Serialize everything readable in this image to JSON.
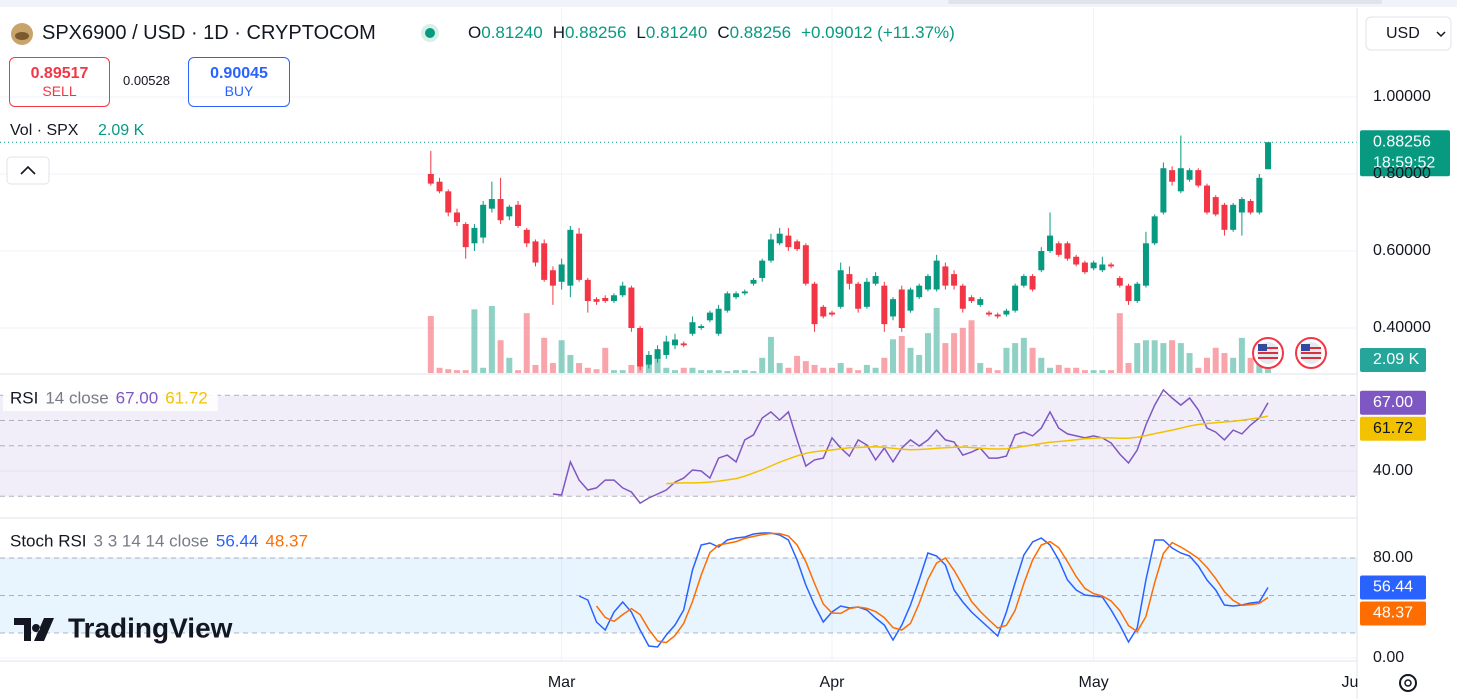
{
  "header": {
    "symbol": "SPX6900 / USD · 1D · CRYPTOCOM",
    "ohlc": [
      {
        "key": "O",
        "value": "0.81240"
      },
      {
        "key": "H",
        "value": "0.88256"
      },
      {
        "key": "L",
        "value": "0.81240"
      },
      {
        "key": "C",
        "value": "0.88256"
      }
    ],
    "change": "+0.09012 (+11.37%)",
    "sell": {
      "price": "0.89517",
      "label": "SELL"
    },
    "spread": "0.00528",
    "buy": {
      "price": "0.90045",
      "label": "BUY"
    },
    "currency": "USD",
    "brand": "TradingView"
  },
  "chart_data": {
    "type": "candlestick",
    "up_color": "#089981",
    "down_color": "#f23645",
    "grid": true,
    "xlim": [
      -49.4,
      106.2
    ],
    "xticks": [
      {
        "value": 15,
        "label": "Mar"
      },
      {
        "value": 46,
        "label": "Apr"
      },
      {
        "value": 76,
        "label": "May"
      },
      {
        "value": 107,
        "label": "Ju"
      }
    ],
    "ylim": [
      0.2831,
      1.226
    ],
    "yticks": [
      {
        "value": 1,
        "label": "1.00000"
      },
      {
        "value": 0.8,
        "label": "0.80000"
      },
      {
        "value": 0.6,
        "label": "0.60000"
      },
      {
        "value": 0.4,
        "label": "0.40000"
      }
    ],
    "last_price": {
      "label": "0.88256",
      "countdown": "18:59:52"
    },
    "ohlc": [
      [
        0.8,
        0.86,
        0.77,
        0.775
      ],
      [
        0.78,
        0.79,
        0.75,
        0.755
      ],
      [
        0.755,
        0.76,
        0.69,
        0.7
      ],
      [
        0.7,
        0.71,
        0.665,
        0.675
      ],
      [
        0.67,
        0.675,
        0.58,
        0.61
      ],
      [
        0.62,
        0.67,
        0.6,
        0.66
      ],
      [
        0.635,
        0.73,
        0.62,
        0.72
      ],
      [
        0.71,
        0.78,
        0.7,
        0.735
      ],
      [
        0.735,
        0.79,
        0.67,
        0.68
      ],
      [
        0.69,
        0.72,
        0.68,
        0.715
      ],
      [
        0.72,
        0.73,
        0.66,
        0.665
      ],
      [
        0.655,
        0.66,
        0.61,
        0.62
      ],
      [
        0.625,
        0.63,
        0.56,
        0.57
      ],
      [
        0.62,
        0.63,
        0.52,
        0.525
      ],
      [
        0.55,
        0.56,
        0.46,
        0.51
      ],
      [
        0.52,
        0.58,
        0.5,
        0.565
      ],
      [
        0.51,
        0.665,
        0.48,
        0.655
      ],
      [
        0.645,
        0.66,
        0.52,
        0.525
      ],
      [
        0.525,
        0.53,
        0.44,
        0.47
      ],
      [
        0.475,
        0.48,
        0.46,
        0.468
      ],
      [
        0.478,
        0.485,
        0.465,
        0.47
      ],
      [
        0.47,
        0.49,
        0.465,
        0.485
      ],
      [
        0.485,
        0.52,
        0.48,
        0.51
      ],
      [
        0.505,
        0.51,
        0.39,
        0.4
      ],
      [
        0.4,
        0.405,
        0.29,
        0.3
      ],
      [
        0.305,
        0.34,
        0.295,
        0.33
      ],
      [
        0.32,
        0.355,
        0.31,
        0.345
      ],
      [
        0.33,
        0.38,
        0.32,
        0.365
      ],
      [
        0.355,
        0.385,
        0.345,
        0.37
      ],
      [
        0.36,
        0.365,
        0.35,
        0.355
      ],
      [
        0.385,
        0.43,
        0.38,
        0.415
      ],
      [
        0.4,
        0.41,
        0.395,
        0.405
      ],
      [
        0.42,
        0.445,
        0.415,
        0.44
      ],
      [
        0.385,
        0.46,
        0.38,
        0.45
      ],
      [
        0.445,
        0.495,
        0.44,
        0.49
      ],
      [
        0.48,
        0.495,
        0.475,
        0.49
      ],
      [
        0.49,
        0.5,
        0.485,
        0.495
      ],
      [
        0.515,
        0.53,
        0.51,
        0.525
      ],
      [
        0.53,
        0.58,
        0.52,
        0.575
      ],
      [
        0.575,
        0.645,
        0.57,
        0.63
      ],
      [
        0.62,
        0.66,
        0.615,
        0.645
      ],
      [
        0.64,
        0.66,
        0.6,
        0.61
      ],
      [
        0.625,
        0.63,
        0.6,
        0.605
      ],
      [
        0.615,
        0.62,
        0.51,
        0.515
      ],
      [
        0.515,
        0.52,
        0.39,
        0.41
      ],
      [
        0.455,
        0.46,
        0.425,
        0.43
      ],
      [
        0.44,
        0.445,
        0.43,
        0.435
      ],
      [
        0.455,
        0.57,
        0.45,
        0.55
      ],
      [
        0.54,
        0.56,
        0.5,
        0.515
      ],
      [
        0.515,
        0.52,
        0.44,
        0.45
      ],
      [
        0.455,
        0.53,
        0.45,
        0.52
      ],
      [
        0.515,
        0.545,
        0.51,
        0.535
      ],
      [
        0.51,
        0.52,
        0.39,
        0.41
      ],
      [
        0.43,
        0.48,
        0.42,
        0.475
      ],
      [
        0.5,
        0.51,
        0.39,
        0.4
      ],
      [
        0.445,
        0.505,
        0.44,
        0.5
      ],
      [
        0.48,
        0.515,
        0.475,
        0.51
      ],
      [
        0.5,
        0.54,
        0.495,
        0.535
      ],
      [
        0.5,
        0.59,
        0.495,
        0.575
      ],
      [
        0.56,
        0.57,
        0.5,
        0.51
      ],
      [
        0.54,
        0.55,
        0.5,
        0.51
      ],
      [
        0.51,
        0.515,
        0.44,
        0.45
      ],
      [
        0.48,
        0.485,
        0.465,
        0.47
      ],
      [
        0.46,
        0.48,
        0.455,
        0.475
      ],
      [
        0.44,
        0.445,
        0.43,
        0.435
      ],
      [
        0.435,
        0.44,
        0.425,
        0.43
      ],
      [
        0.435,
        0.45,
        0.43,
        0.445
      ],
      [
        0.445,
        0.515,
        0.44,
        0.51
      ],
      [
        0.51,
        0.54,
        0.505,
        0.535
      ],
      [
        0.535,
        0.54,
        0.495,
        0.5
      ],
      [
        0.55,
        0.61,
        0.545,
        0.6
      ],
      [
        0.6,
        0.7,
        0.595,
        0.64
      ],
      [
        0.62,
        0.625,
        0.585,
        0.59
      ],
      [
        0.62,
        0.625,
        0.575,
        0.58
      ],
      [
        0.585,
        0.59,
        0.56,
        0.565
      ],
      [
        0.57,
        0.575,
        0.54,
        0.545
      ],
      [
        0.555,
        0.575,
        0.55,
        0.57
      ],
      [
        0.55,
        0.585,
        0.545,
        0.565
      ],
      [
        0.565,
        0.57,
        0.555,
        0.56
      ],
      [
        0.53,
        0.535,
        0.505,
        0.51
      ],
      [
        0.51,
        0.515,
        0.46,
        0.47
      ],
      [
        0.47,
        0.52,
        0.465,
        0.515
      ],
      [
        0.51,
        0.65,
        0.505,
        0.62
      ],
      [
        0.62,
        0.695,
        0.615,
        0.69
      ],
      [
        0.7,
        0.83,
        0.695,
        0.815
      ],
      [
        0.81,
        0.82,
        0.77,
        0.78
      ],
      [
        0.755,
        0.9,
        0.75,
        0.815
      ],
      [
        0.785,
        0.815,
        0.78,
        0.81
      ],
      [
        0.81,
        0.815,
        0.765,
        0.77
      ],
      [
        0.77,
        0.775,
        0.695,
        0.7
      ],
      [
        0.74,
        0.745,
        0.69,
        0.695
      ],
      [
        0.72,
        0.725,
        0.64,
        0.655
      ],
      [
        0.655,
        0.725,
        0.65,
        0.72
      ],
      [
        0.7,
        0.74,
        0.64,
        0.735
      ],
      [
        0.73,
        0.735,
        0.695,
        0.7
      ],
      [
        0.7,
        0.8,
        0.695,
        0.79
      ],
      [
        0.8124,
        0.88256,
        0.8124,
        0.88256
      ]
    ],
    "volume": {
      "title": "Vol · SPX",
      "value_label": "2.09 K",
      "ylim": [
        0,
        20
      ],
      "values": [
        12.0,
        1.1,
        0.8,
        0.6,
        0.6,
        13.4,
        1.1,
        14.1,
        6.9,
        3.2,
        0.6,
        12.6,
        1.7,
        7.4,
        2.1,
        6.9,
        3.8,
        2.1,
        1.1,
        0.8,
        5.3,
        0.6,
        0.6,
        1.7,
        8.4,
        3.8,
        4.2,
        1.1,
        0.6,
        1.1,
        1.1,
        0.6,
        0.6,
        0.6,
        0.4,
        0.6,
        0.6,
        0.4,
        3.2,
        7.6,
        2.1,
        1.1,
        3.6,
        2.5,
        1.7,
        1.1,
        1.1,
        2.1,
        1.1,
        0.6,
        1.7,
        1.1,
        3.2,
        7.1,
        7.8,
        5.3,
        3.8,
        8.4,
        13.7,
        6.3,
        8.4,
        9.5,
        11.1,
        2.1,
        1.1,
        0.6,
        5.3,
        6.3,
        7.4,
        5.3,
        3.2,
        1.1,
        1.7,
        1.1,
        1.1,
        0.6,
        0.6,
        0.6,
        0.6,
        12.6,
        2.1,
        6.3,
        6.9,
        6.9,
        6.3,
        6.9,
        6.3,
        4.2,
        1.1,
        3.2,
        5.3,
        4.2,
        3.2,
        7.4,
        3.2,
        6.3,
        2.09
      ]
    },
    "rsi": {
      "title": "RSI",
      "params": "14 close",
      "ylim": [
        21.8,
        78
      ],
      "yticks": [
        {
          "value": 40,
          "label": "40.00"
        }
      ],
      "bands": [
        70,
        60,
        50,
        30
      ],
      "band_color": "#7e57c2",
      "series": [
        {
          "color": "#7e57c2",
          "value_label": "67.00",
          "values": [
            null,
            null,
            null,
            null,
            null,
            null,
            null,
            null,
            null,
            null,
            null,
            null,
            null,
            null,
            30.9,
            30.5,
            43.6,
            36.4,
            32.5,
            33.3,
            36.4,
            36.4,
            33.3,
            31.7,
            27.3,
            29.3,
            30.9,
            32.5,
            35.6,
            37.2,
            40.4,
            40,
            37.2,
            45.1,
            46.3,
            43.6,
            52.3,
            54.3,
            61,
            63.4,
            60.2,
            63.4,
            52.3,
            42,
            44.4,
            45.1,
            53.1,
            49.1,
            45.9,
            52.3,
            50.3,
            44.4,
            49.1,
            43.6,
            49.1,
            52.3,
            49.9,
            52.3,
            56.2,
            52.3,
            51.5,
            46.3,
            47.5,
            49.1,
            45.1,
            45.1,
            45.9,
            54.3,
            55.4,
            53.9,
            57,
            63.4,
            57,
            54.7,
            53.9,
            53.1,
            53.9,
            53.1,
            51.1,
            46.7,
            43.2,
            48.3,
            58.2,
            66.1,
            72.1,
            68.9,
            66.1,
            68.9,
            64.2,
            57,
            55.4,
            52.3,
            56.2,
            54.7,
            58.2,
            61,
            67
          ]
        },
        {
          "color": "#f2c200",
          "value_label": "61.72",
          "values": [
            null,
            null,
            null,
            null,
            null,
            null,
            null,
            null,
            null,
            null,
            null,
            null,
            null,
            null,
            null,
            null,
            null,
            null,
            null,
            null,
            null,
            null,
            null,
            null,
            null,
            null,
            null,
            35.0,
            35.2,
            35.3,
            35.3,
            35.4,
            35.6,
            36.0,
            36.5,
            37.0,
            38.0,
            39.2,
            40.5,
            42.0,
            43.5,
            44.8,
            46.0,
            47.0,
            47.6,
            48.0,
            48.3,
            48.8,
            49.2,
            49.3,
            49.5,
            49.6,
            49.4,
            49.0,
            48.6,
            48.4,
            48.5,
            48.7,
            49.0,
            49.2,
            49.4,
            49.5,
            49.3,
            49.0,
            48.8,
            48.7,
            48.8,
            49.2,
            49.8,
            50.3,
            50.9,
            51.4,
            51.7,
            52.0,
            52.4,
            52.8,
            53.0,
            53.1,
            53.1,
            53.0,
            53.0,
            53.4,
            54.0,
            54.8,
            55.5,
            56.2,
            57.0,
            57.8,
            58.4,
            58.8,
            59.1,
            59.4,
            59.7,
            60.1,
            60.6,
            61.1,
            61.72
          ]
        }
      ]
    },
    "stoch_rsi": {
      "title": "Stoch RSI",
      "params": "3 3 14 14 close",
      "ylim": [
        -1.6,
        111.2
      ],
      "yticks": [
        {
          "value": 80,
          "label": "80.00"
        },
        {
          "value": 0,
          "label": "0.00"
        }
      ],
      "bands": [
        80,
        50,
        20
      ],
      "band_color": "#2196f3",
      "series": [
        {
          "color": "#2962ff",
          "value_label": "56.44",
          "values": [
            null,
            null,
            null,
            null,
            null,
            null,
            null,
            null,
            null,
            null,
            null,
            null,
            null,
            null,
            null,
            null,
            null,
            49.6,
            46.4,
            28.8,
            22.4,
            36.8,
            44.8,
            36.8,
            22.4,
            9.6,
            8.8,
            18.4,
            26.4,
            38.4,
            70.4,
            90.4,
            92,
            88.8,
            94.4,
            96,
            96.8,
            99.2,
            100,
            100,
            98.4,
            94.4,
            78.4,
            58.4,
            42.4,
            28.8,
            36.8,
            41.6,
            40,
            40.8,
            38.4,
            32,
            26.4,
            14.4,
            26.4,
            42.4,
            62.4,
            84,
            81.6,
            74.4,
            54.4,
            44.8,
            36.8,
            30.4,
            24,
            17.6,
            36.8,
            60,
            82.4,
            92.8,
            96,
            90.4,
            78.4,
            62.4,
            54.4,
            50.4,
            49.6,
            48.8,
            38.4,
            26.4,
            12.8,
            24,
            62.4,
            94.4,
            94.4,
            88,
            84,
            81.6,
            73.6,
            62.4,
            54.4,
            42.4,
            41.6,
            42.4,
            44,
            44.8,
            56.44
          ]
        },
        {
          "color": "#ff6d00",
          "value_label": "48.37",
          "values": [
            null,
            null,
            null,
            null,
            null,
            null,
            null,
            null,
            null,
            null,
            null,
            null,
            null,
            null,
            null,
            null,
            null,
            null,
            null,
            41.6,
            32.5,
            29.3,
            34.7,
            39.5,
            34.7,
            22.9,
            13.6,
            12.3,
            17.9,
            27.7,
            45.1,
            66.4,
            84.3,
            90.4,
            91.7,
            93.1,
            95.7,
            97.3,
            98.7,
            99.7,
            99.5,
            97.6,
            90.4,
            77.1,
            59.7,
            43.2,
            36,
            35.7,
            39.5,
            40.8,
            39.7,
            37.1,
            32.3,
            24.3,
            22.4,
            27.7,
            43.7,
            62.9,
            76,
            80,
            70.1,
            57.9,
            45.3,
            37.3,
            30.4,
            24,
            26.1,
            38.1,
            59.7,
            78.4,
            90.4,
            93.1,
            88.3,
            77.1,
            65.1,
            55.7,
            51.5,
            49.6,
            45.6,
            37.9,
            25.9,
            21.1,
            33.1,
            60.3,
            83.7,
            92.3,
            88.8,
            84.5,
            79.7,
            72.5,
            63.5,
            53.1,
            46.1,
            42.1,
            42.7,
            43.7,
            48.37
          ]
        }
      ]
    }
  }
}
